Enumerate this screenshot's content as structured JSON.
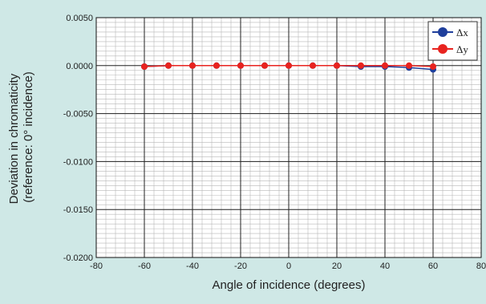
{
  "chart_data": {
    "type": "line",
    "title": "",
    "xlabel": "Angle of incidence (degrees)",
    "ylabel_lines": [
      "Deviation in chromaticity",
      "(reference: 0° incidence)"
    ],
    "xlim": [
      -80,
      80
    ],
    "ylim": [
      -0.02,
      0.005
    ],
    "x_ticks": [
      -80,
      -60,
      -40,
      -20,
      0,
      20,
      40,
      60,
      80
    ],
    "x_tick_labels": [
      "-80",
      "-60",
      "-40",
      "-20",
      "0",
      "20",
      "40",
      "60",
      "80"
    ],
    "y_ticks": [
      0.005,
      0,
      -0.005,
      -0.01,
      -0.015,
      -0.02
    ],
    "y_tick_labels": [
      "0.0050",
      "0.0000",
      "-0.0050",
      "-0.0100",
      "-0.0150",
      "-0.0200"
    ],
    "grid": true,
    "legend_position": "top-right",
    "x": [
      -60,
      -50,
      -40,
      -30,
      -20,
      -10,
      0,
      10,
      20,
      30,
      40,
      50,
      60
    ],
    "series": [
      {
        "name": "Δx",
        "color": "#1f3f9c",
        "values": [
          -0.0001,
          0.0,
          0.0,
          0.0,
          0.0,
          0.0,
          0.0,
          0.0,
          0.0,
          -0.0001,
          -0.0001,
          -0.0002,
          -0.0004
        ]
      },
      {
        "name": "Δy",
        "color": "#e8231f",
        "values": [
          -0.0001,
          0.0,
          0.0,
          0.0,
          0.0,
          0.0,
          0.0,
          0.0,
          0.0,
          0.0,
          0.0,
          0.0,
          -0.0001
        ]
      }
    ]
  }
}
